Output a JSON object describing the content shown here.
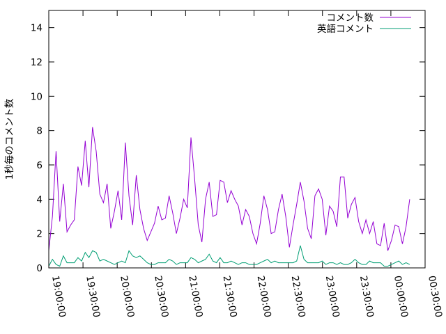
{
  "chart_data": {
    "type": "line",
    "title": "",
    "xlabel": "",
    "ylabel": "1秒毎のコメント数",
    "ylim": [
      0,
      15
    ],
    "yticks": [
      0,
      2,
      4,
      6,
      8,
      10,
      12,
      14
    ],
    "x_tick_labels": [
      "19:00:00",
      "19:30:00",
      "20:00:00",
      "20:30:00",
      "21:00:00",
      "21:30:00",
      "22:00:00",
      "22:30:00",
      "23:00:00",
      "23:30:00",
      "00:00:00",
      "00:30:00"
    ],
    "xlim_index": [
      0,
      11
    ],
    "legend_position": "top-right",
    "grid": false,
    "series": [
      {
        "name": "コメント数",
        "color": "#9400d3",
        "values": [
          1.0,
          3.0,
          6.8,
          2.7,
          4.9,
          2.1,
          2.5,
          2.8,
          5.9,
          4.8,
          7.4,
          4.7,
          8.2,
          6.8,
          4.3,
          3.8,
          4.9,
          2.3,
          3.3,
          4.5,
          2.8,
          7.3,
          4.2,
          2.5,
          5.4,
          3.4,
          2.3,
          1.6,
          2.1,
          2.6,
          3.6,
          2.8,
          2.9,
          4.2,
          3.2,
          2.0,
          2.9,
          4.0,
          3.5,
          7.6,
          5.2,
          2.5,
          1.5,
          4.0,
          5.0,
          3.0,
          3.1,
          5.1,
          5.0,
          3.8,
          4.5,
          4.0,
          3.6,
          2.5,
          3.4,
          3.0,
          2.0,
          1.4,
          2.6,
          4.2,
          3.4,
          2.0,
          2.1,
          3.4,
          4.3,
          3.0,
          1.2,
          2.5,
          3.7,
          5.0,
          3.9,
          2.3,
          1.7,
          4.2,
          4.6,
          4.0,
          1.9,
          3.6,
          3.3,
          2.4,
          5.3,
          5.3,
          2.9,
          3.7,
          4.1,
          2.7,
          2.0,
          2.8,
          2.0,
          2.7,
          1.4,
          1.3,
          2.6,
          1.0,
          1.6,
          2.5,
          2.4,
          1.4,
          2.4,
          4.0
        ]
      },
      {
        "name": "英語コメント",
        "color": "#009e73",
        "values": [
          0.1,
          0.5,
          0.2,
          0.1,
          0.7,
          0.3,
          0.3,
          0.3,
          0.6,
          0.4,
          0.9,
          0.6,
          1.0,
          0.9,
          0.4,
          0.5,
          0.4,
          0.3,
          0.2,
          0.3,
          0.4,
          0.3,
          1.0,
          0.7,
          0.6,
          0.7,
          0.5,
          0.3,
          0.2,
          0.2,
          0.3,
          0.3,
          0.3,
          0.5,
          0.4,
          0.2,
          0.3,
          0.3,
          0.3,
          0.6,
          0.5,
          0.3,
          0.4,
          0.5,
          0.8,
          0.4,
          0.3,
          0.6,
          0.3,
          0.3,
          0.4,
          0.3,
          0.2,
          0.3,
          0.3,
          0.2,
          0.2,
          0.2,
          0.3,
          0.4,
          0.5,
          0.3,
          0.4,
          0.3,
          0.3,
          0.3,
          0.3,
          0.3,
          0.4,
          1.3,
          0.5,
          0.3,
          0.3,
          0.3,
          0.3,
          0.4,
          0.2,
          0.3,
          0.3,
          0.2,
          0.3,
          0.2,
          0.2,
          0.3,
          0.5,
          0.3,
          0.2,
          0.2,
          0.4,
          0.3,
          0.3,
          0.3,
          0.1,
          0.1,
          0.2,
          0.3,
          0.4,
          0.2,
          0.3,
          0.2
        ]
      }
    ]
  }
}
